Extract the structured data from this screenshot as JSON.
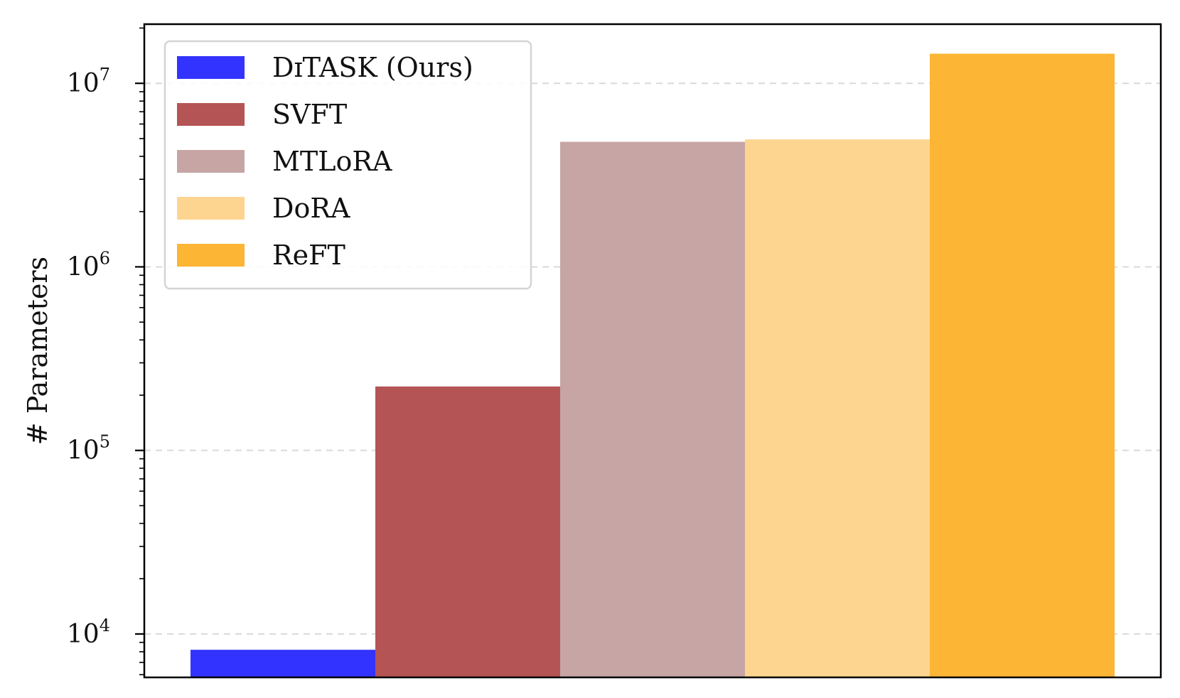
{
  "chart_data": {
    "type": "bar",
    "ylabel": "# Parameters",
    "yscale": "log",
    "ylim": [
      5800,
      21000000
    ],
    "yticks": [
      {
        "value": 10000,
        "base": "10",
        "exp": "4"
      },
      {
        "value": 100000,
        "base": "10",
        "exp": "5"
      },
      {
        "value": 1000000,
        "base": "10",
        "exp": "6"
      },
      {
        "value": 10000000,
        "base": "10",
        "exp": "7"
      }
    ],
    "grid": "y-major-dashed",
    "legend_position": "top-left",
    "series": [
      {
        "name": "DɪTASK (Ours)",
        "value": 8200,
        "color": "#3333ff"
      },
      {
        "name": "SVFT",
        "value": 223000,
        "color": "#b55454"
      },
      {
        "name": "MTLoRA",
        "value": 4800000,
        "color": "#c7a5a5"
      },
      {
        "name": "DoRA",
        "value": 4950000,
        "color": "#fdd590"
      },
      {
        "name": "ReFT",
        "value": 14500000,
        "color": "#fdb535"
      }
    ]
  }
}
